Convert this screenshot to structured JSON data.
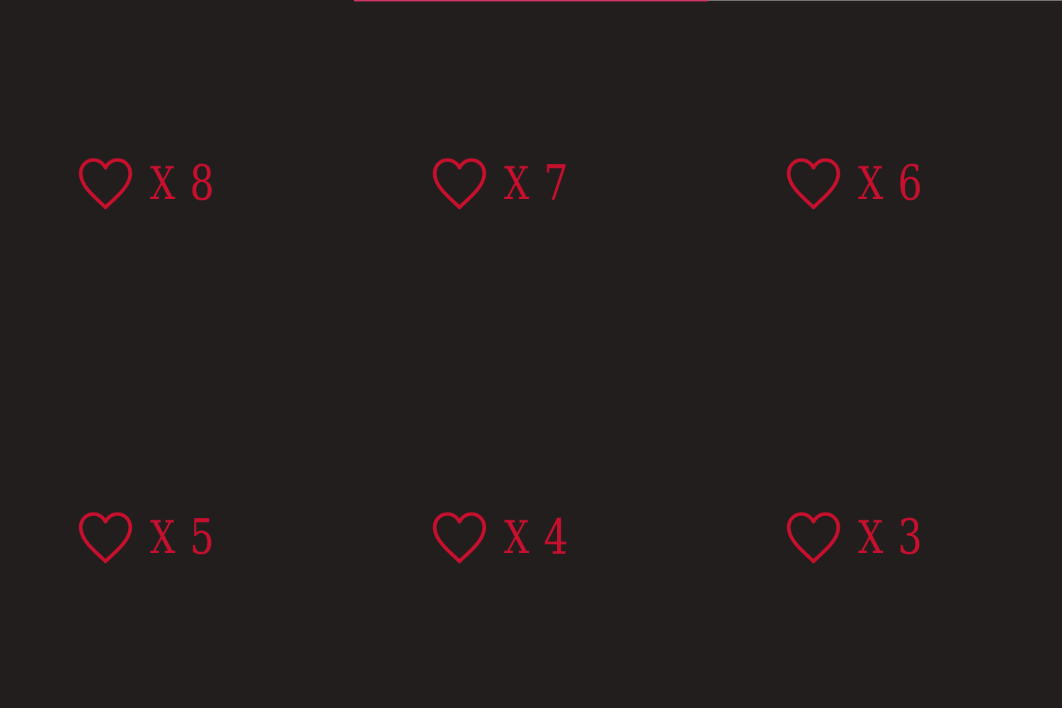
{
  "theme": {
    "background": "#221e1e",
    "accent": "#c8102e",
    "top_line_left": "#d6336c",
    "top_line_right": "#8a8a8a"
  },
  "lives_cards": [
    {
      "icon": "heart-outline-icon",
      "multiplier": "X",
      "count": "8"
    },
    {
      "icon": "heart-outline-icon",
      "multiplier": "X",
      "count": "7"
    },
    {
      "icon": "heart-outline-icon",
      "multiplier": "X",
      "count": "6"
    },
    {
      "icon": "heart-outline-icon",
      "multiplier": "X",
      "count": "5"
    },
    {
      "icon": "heart-outline-icon",
      "multiplier": "X",
      "count": "4"
    },
    {
      "icon": "heart-outline-icon",
      "multiplier": "X",
      "count": "3"
    }
  ]
}
